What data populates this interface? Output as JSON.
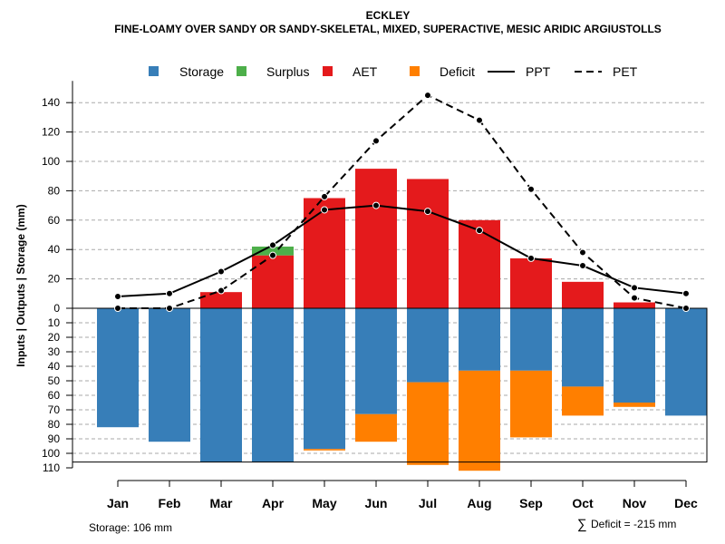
{
  "chart_data": {
    "type": "bar",
    "title": "ECKLEY",
    "subtitle": "FINE-LOAMY OVER SANDY OR SANDY-SKELETAL, MIXED, SUPERACTIVE, MESIC ARIDIC ARGIUSTOLLS",
    "ylabel": "Inputs | Outputs | Storage    (mm)",
    "categories": [
      "Jan",
      "Feb",
      "Mar",
      "Apr",
      "May",
      "Jun",
      "Jul",
      "Aug",
      "Sep",
      "Oct",
      "Nov",
      "Dec"
    ],
    "upper_ticks": [
      "0",
      "20",
      "40",
      "60",
      "80",
      "100",
      "120",
      "140"
    ],
    "lower_ticks": [
      "10",
      "20",
      "30",
      "40",
      "50",
      "60",
      "70",
      "80",
      "90",
      "100",
      "110"
    ],
    "upper_ylim": [
      0,
      150
    ],
    "lower_ylim": [
      0,
      110
    ],
    "storage_capacity": 106,
    "series": [
      {
        "name": "Storage",
        "kind": "bar-down",
        "color": "#377EB8",
        "values": [
          82,
          92,
          106,
          106,
          97,
          73,
          51,
          43,
          43,
          54,
          65,
          74
        ]
      },
      {
        "name": "Surplus",
        "kind": "bar-up-stack",
        "color": "#4DAF4A",
        "values": [
          0,
          0,
          0,
          6,
          0,
          0,
          0,
          0,
          0,
          0,
          0,
          0
        ]
      },
      {
        "name": "AET",
        "kind": "bar-up",
        "color": "#E41A1C",
        "values": [
          0,
          0,
          11,
          36,
          75,
          95,
          88,
          60,
          34,
          18,
          4,
          0
        ]
      },
      {
        "name": "Deficit",
        "kind": "bar-down-stack",
        "color": "#FF7F00",
        "values": [
          0,
          0,
          0,
          0,
          1,
          19,
          57,
          69,
          46,
          20,
          3,
          0
        ]
      },
      {
        "name": "PPT",
        "kind": "line",
        "color": "#000000",
        "dash": "solid",
        "values": [
          8,
          10,
          25,
          43,
          67,
          70,
          66,
          53,
          34,
          29,
          14,
          10
        ]
      },
      {
        "name": "PET",
        "kind": "line",
        "color": "#000000",
        "dash": "dashed",
        "values": [
          0,
          0,
          12,
          36,
          76,
          114,
          145,
          128,
          81,
          38,
          7,
          0
        ]
      }
    ]
  },
  "footer": {
    "storage_note": "Storage: 106 mm",
    "deficit_symbol": "∑",
    "deficit_note": "Deficit = -215 mm"
  }
}
